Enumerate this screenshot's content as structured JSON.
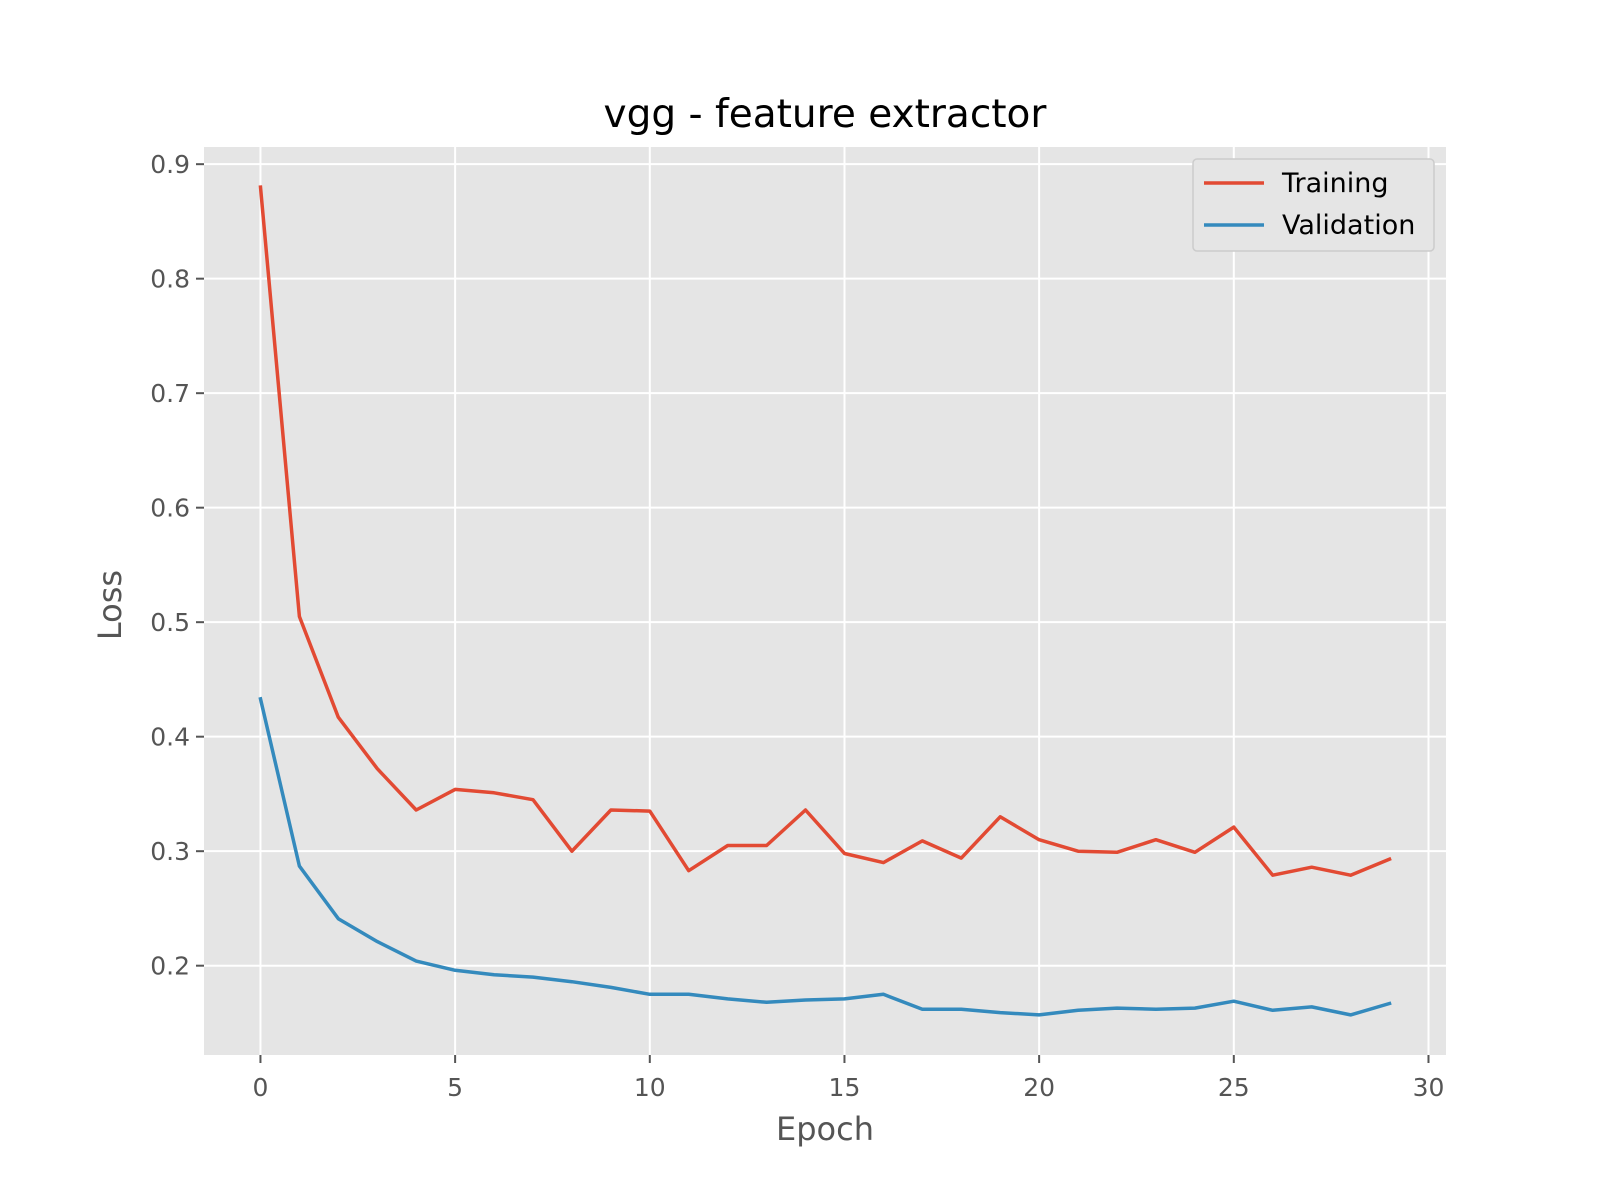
{
  "chart_data": {
    "type": "line",
    "title": "vgg - feature extractor",
    "xlabel": "Epoch",
    "ylabel": "Loss",
    "xlim": [
      -1.45,
      30.45
    ],
    "ylim": [
      0.122,
      0.915
    ],
    "xticks": [
      0,
      5,
      10,
      15,
      20,
      25,
      30
    ],
    "xtick_labels": [
      "0",
      "5",
      "10",
      "15",
      "20",
      "25",
      "30"
    ],
    "yticks": [
      0.2,
      0.3,
      0.4,
      0.5,
      0.6,
      0.7,
      0.8,
      0.9
    ],
    "ytick_labels": [
      "0.2",
      "0.3",
      "0.4",
      "0.5",
      "0.6",
      "0.7",
      "0.8",
      "0.9"
    ],
    "grid": true,
    "legend_position": "top-right",
    "x": [
      0,
      1,
      2,
      3,
      4,
      5,
      6,
      7,
      8,
      9,
      10,
      11,
      12,
      13,
      14,
      15,
      16,
      17,
      18,
      19,
      20,
      21,
      22,
      23,
      24,
      25,
      26,
      27,
      28,
      29
    ],
    "series": [
      {
        "name": "Training",
        "color": "#E24A33",
        "values": [
          0.88,
          0.505,
          0.417,
          0.372,
          0.336,
          0.354,
          0.351,
          0.345,
          0.3,
          0.336,
          0.335,
          0.283,
          0.305,
          0.305,
          0.336,
          0.298,
          0.29,
          0.309,
          0.294,
          0.33,
          0.31,
          0.3,
          0.299,
          0.31,
          0.299,
          0.321,
          0.279,
          0.286,
          0.279,
          0.293
        ]
      },
      {
        "name": "Validation",
        "color": "#348ABD",
        "values": [
          0.433,
          0.287,
          0.241,
          0.221,
          0.204,
          0.196,
          0.192,
          0.19,
          0.186,
          0.181,
          0.175,
          0.175,
          0.171,
          0.168,
          0.17,
          0.171,
          0.175,
          0.162,
          0.162,
          0.159,
          0.157,
          0.161,
          0.163,
          0.162,
          0.163,
          0.169,
          0.161,
          0.164,
          0.157,
          0.167
        ]
      }
    ]
  }
}
